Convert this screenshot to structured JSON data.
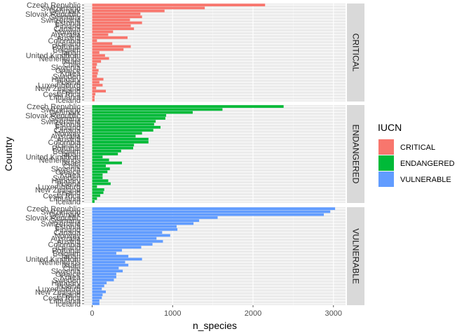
{
  "chart_data": {
    "type": "bar",
    "orientation": "horizontal",
    "xlabel": "n_species",
    "ylabel": "Country",
    "xlim": [
      -100,
      3150
    ],
    "x_ticks": [
      0,
      1000,
      2000,
      3000
    ],
    "grid": true,
    "legend_placement": "right",
    "legend_title": "IUCN",
    "categories": [
      "Czech Republic",
      "Switzerland",
      "Denmark",
      "Slovak Republic",
      "Germany",
      "Switzerland",
      "Estonia",
      "Finland",
      "Canada",
      "Norway",
      "Australia",
      "Austria",
      "Colombia",
      "Iceland",
      "Portugal",
      "Belgium",
      "Japan",
      "United Kingdom",
      "Netherlands",
      "Israel",
      "Chile",
      "Slovenia",
      "Greece",
      "Korea",
      "Sweden",
      "Hungary",
      "Poland",
      "Luxembourg",
      "New Zealand",
      "Ireland",
      "Costa Rica",
      "Lithuania",
      "Iceland"
    ],
    "series": [
      {
        "name": "CRITICAL",
        "color": "#F8766D",
        "values": [
          2150,
          1400,
          900,
          600,
          620,
          470,
          620,
          480,
          520,
          260,
          200,
          440,
          60,
          250,
          480,
          390,
          90,
          160,
          210,
          110,
          60,
          50,
          80,
          70,
          60,
          140,
          90,
          130,
          50,
          170,
          40,
          30,
          30
        ]
      },
      {
        "name": "ENDANGERED",
        "color": "#00BA38",
        "values": [
          2380,
          1620,
          1250,
          920,
          910,
          790,
          770,
          850,
          760,
          620,
          540,
          700,
          700,
          520,
          510,
          360,
          320,
          130,
          210,
          370,
          170,
          220,
          190,
          130,
          130,
          200,
          230,
          60,
          150,
          140,
          100,
          60,
          30
        ]
      },
      {
        "name": "VULNERABLE",
        "color": "#619CFF",
        "values": [
          3020,
          2960,
          2880,
          1560,
          1330,
          1260,
          1050,
          1060,
          870,
          970,
          800,
          880,
          750,
          610,
          370,
          300,
          450,
          620,
          410,
          450,
          330,
          380,
          300,
          300,
          270,
          180,
          150,
          120,
          170,
          130,
          120,
          90,
          90
        ]
      }
    ],
    "facets": [
      "CRITICAL",
      "ENDANGERED",
      "VULNERABLE"
    ]
  }
}
